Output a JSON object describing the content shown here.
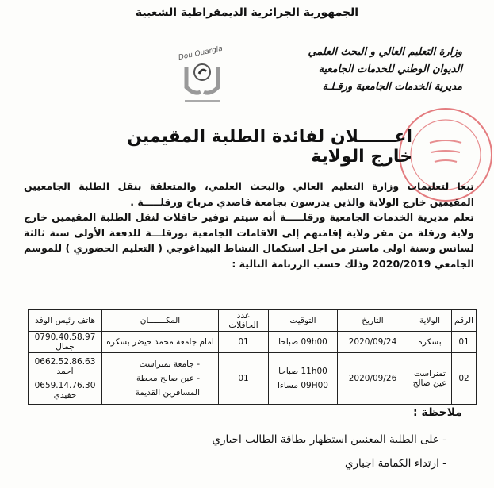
{
  "header": {
    "republic": "الجمهورية الجزائرية الديمقراطية الشعبية",
    "ministry_lines": [
      "وزارة التعليم العالي و البحث العلمي",
      "الديوان الوطني للخدمات الجامعية",
      "مديرية الخدمات الجامعية ورقـلـة"
    ],
    "logo_text": "Dou Ouargla",
    "logo_caption": "مديرية الخدمات الجامعية ورقلة"
  },
  "title": "اعــــــلان لفائدة الطلبة المقيمين خارج الولاية",
  "body": {
    "paragraphs": [
      "تبعا لتعليمات وزارة التعليم العالي والبحث العلمي، والمتعلقة بنقل الطلبة الجامعيين المقيمين خارج الولاية والذين يدرسون بجامعة قاصدي مرباح ورقلـــــة .",
      "تعلم مديرية الخدمات الجامعية ورقلـــــة أنه سيتم توفير حافلات لنقل الطلبة المقيمين خارج ولاية ورقلة من مقر ولاية إقامتهم إلى الاقامات الجامعية بورقلـــة للدفعة الأولى سنة ثالثة لسانس وسنة اولى ماستر من اجل استكمال النشاط البيداغوجي ( التعليم الحضوري ) للموسم الجامعي 2020/2019 وذلك حسب الرزنامة التالية :"
    ]
  },
  "table": {
    "headers": [
      "الرقم",
      "الولاية",
      "التاريخ",
      "التوقيت",
      "عدد الحافلات",
      "المكـــــــان",
      "هاتف رئيس الوفد"
    ],
    "rows": [
      {
        "num": "01",
        "wilaya": "بسكرة",
        "date": "2020/09/24",
        "time": [
          "09h00 صباحا"
        ],
        "buses": "01",
        "place": [
          "امام جامعة محمد خيضر بسكرة"
        ],
        "phone": [
          "0790.40.58.97 جمال"
        ]
      },
      {
        "num": "02",
        "wilaya": "تمنراست عين صالح",
        "date": "2020/09/26",
        "time": [
          "11h00 صباحا",
          "09H00 مساءا"
        ],
        "buses": "01",
        "place": [
          "- جامعة تمنراست",
          "- عين صالح محطة المسافرين القديمة"
        ],
        "phone": [
          "0662.52.86.63 احمد",
          "0659.14.76.30 حفيدي"
        ]
      }
    ]
  },
  "notes": {
    "heading": "ملاحظة :",
    "items": [
      "على الطلبة المعنيين استظهار بطاقة الطالب اجباري",
      "ارتداء الكمامة اجباري"
    ]
  },
  "colors": {
    "stamp": "#d9454a",
    "logo": "#8a8a8a"
  }
}
